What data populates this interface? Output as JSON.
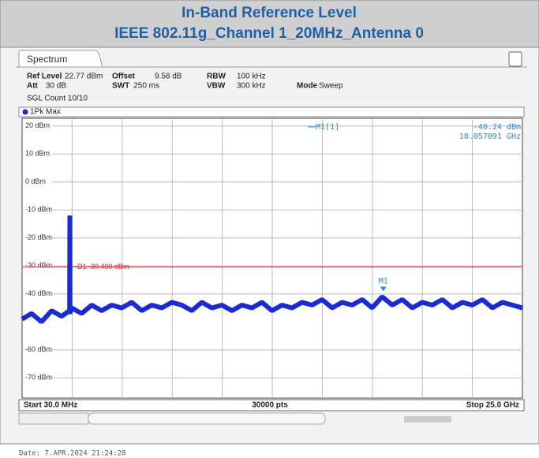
{
  "header": {
    "title": "In-Band Reference Level",
    "subtitle": "IEEE 802.11g_Channel 1_20MHz_Antenna 0"
  },
  "window": {
    "tab": "Spectrum",
    "info": [
      [
        "Ref Level",
        "22.77 dBm",
        "Offset",
        "9.58 dB",
        "RBW",
        "100 kHz"
      ],
      [
        "Att",
        "30 dB",
        "SWT",
        "250 ms",
        "VBW",
        "300 kHz",
        "Mode",
        "Sweep"
      ]
    ],
    "count": "SGL Count 10/10",
    "trace_label": "1Pk Max"
  },
  "chart_data": {
    "type": "line",
    "x": [
      0.03,
      0.5,
      1,
      1.5,
      2,
      2.4,
      2.412,
      2.42,
      2.5,
      3,
      3.5,
      4,
      4.5,
      5,
      5.5,
      6,
      6.5,
      7,
      7.5,
      8,
      8.5,
      9,
      9.5,
      10,
      10.5,
      11,
      11.5,
      12,
      12.5,
      13,
      13.5,
      14,
      14.5,
      15,
      15.5,
      16,
      16.5,
      17,
      17.5,
      18,
      18.5,
      19,
      19.5,
      20,
      20.5,
      21,
      21.5,
      22,
      22.5,
      23,
      23.5,
      24,
      24.5,
      25
    ],
    "series": [
      {
        "name": "1Pk Max",
        "color": "#1a2ad6",
        "values": [
          -49,
          -47,
          -50,
          -46,
          -48,
          -46,
          -12,
          -47,
          -45,
          -47,
          -44,
          -46,
          -44,
          -45,
          -43,
          -46,
          -44,
          -45,
          -43,
          -44,
          -46,
          -43,
          -45,
          -44,
          -46,
          -44,
          -45,
          -43,
          -46,
          -44,
          -45,
          -43,
          -44,
          -42,
          -45,
          -43,
          -44,
          -42,
          -45,
          -41,
          -44,
          -42,
          -45,
          -43,
          -44,
          -42,
          -45,
          -43,
          -44,
          -42,
          -45,
          -43,
          -44,
          -45
        ]
      }
    ],
    "xlim": [
      0.03,
      25
    ],
    "ylim": [
      -77.23,
      22.77
    ],
    "yticks": [
      {
        "value": 20,
        "label": "20 dBm"
      },
      {
        "value": 10,
        "label": "10 dBm"
      },
      {
        "value": 0,
        "label": "0 dBm"
      },
      {
        "value": -10,
        "label": "-10 dBm"
      },
      {
        "value": -20,
        "label": "-20 dBm"
      },
      {
        "value": -30,
        "label": "-30 dBm"
      },
      {
        "value": -40,
        "label": "-40 dBm"
      },
      {
        "value": -60,
        "label": "-60 dBm"
      },
      {
        "value": -70,
        "label": "-70 dBm"
      }
    ],
    "x_divisions": 10,
    "grid": true,
    "display_line": {
      "label": "D1 -30.400 dBm",
      "value": -30.4,
      "color": "#d03030"
    },
    "marker": {
      "name": "M1",
      "readout": "M1[1]",
      "x": 18.057091,
      "y": -40.24,
      "x_label": "18.057091 GHz",
      "y_label": "-40.24 dBm"
    },
    "start_label": "Start 30.0 MHz",
    "points_label": "30000 pts",
    "stop_label": "Stop 25.0 GHz"
  },
  "footer": {
    "date": "Date: 7.APR.2024  21:24:28"
  }
}
